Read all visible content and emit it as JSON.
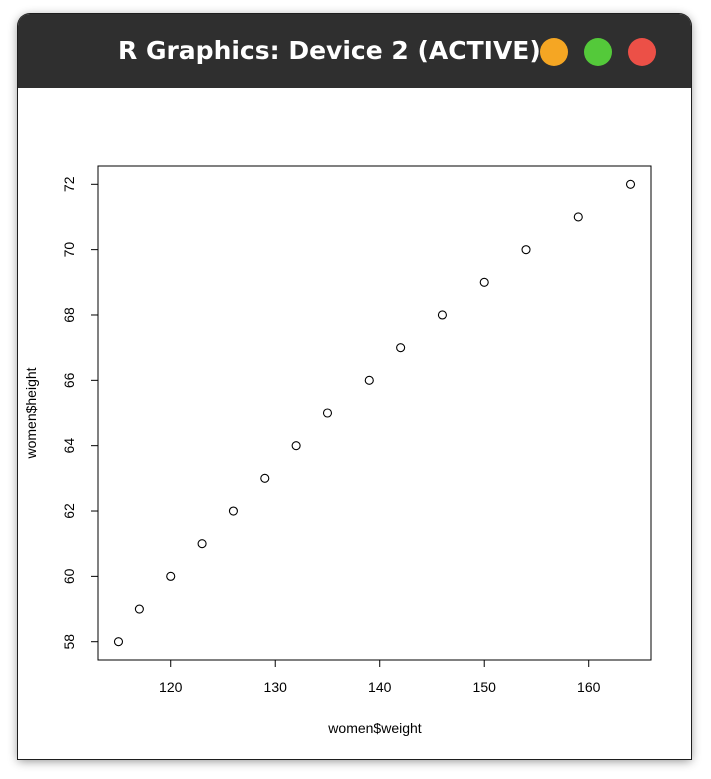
{
  "window": {
    "title": "R Graphics: Device 2 (ACTIVE)",
    "buttons": [
      {
        "name": "minimize",
        "color": "#f5a623"
      },
      {
        "name": "maximize",
        "color": "#54c93a"
      },
      {
        "name": "close",
        "color": "#ec5047"
      }
    ]
  },
  "chart_data": {
    "type": "scatter",
    "title": "",
    "xlabel": "women$weight",
    "ylabel": "women$height",
    "xlim": [
      113.04,
      165.96
    ],
    "ylim": [
      57.44,
      72.56
    ],
    "xticks": [
      120,
      130,
      140,
      150,
      160
    ],
    "yticks": [
      58,
      60,
      62,
      64,
      66,
      68,
      70,
      72
    ],
    "grid": false,
    "point_style": "open-circle",
    "x": [
      115,
      117,
      120,
      123,
      126,
      129,
      132,
      135,
      139,
      142,
      146,
      150,
      154,
      159,
      164
    ],
    "y": [
      58,
      59,
      60,
      61,
      62,
      63,
      64,
      65,
      66,
      67,
      68,
      69,
      70,
      71,
      72
    ]
  }
}
